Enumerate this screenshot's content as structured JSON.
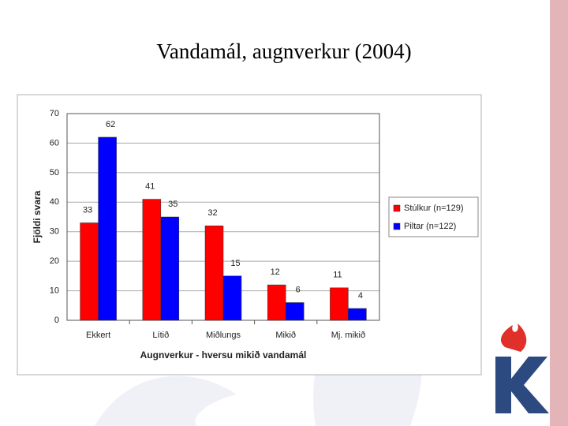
{
  "chart_data": {
    "type": "bar",
    "title": "Vandamál, augnverkur (2004)",
    "x_label": "Augnverkur - hversu mikið vandamál",
    "y_label": "Fjöldi svara",
    "categories": [
      "Ekkert",
      "Lítið",
      "Miðlungs",
      "Mikið",
      "Mj. mikið"
    ],
    "series": [
      {
        "name": "Stúlkur (n=129)",
        "color": "#ff0000",
        "values": [
          33,
          41,
          32,
          12,
          11
        ]
      },
      {
        "name": "Piltar (n=122)",
        "color": "#0000ff",
        "values": [
          62,
          35,
          15,
          6,
          4
        ]
      }
    ],
    "ylim": [
      0,
      70
    ],
    "yticks": [
      0,
      10,
      20,
      30,
      40,
      50,
      60,
      70
    ],
    "grid": true,
    "legend": "right"
  }
}
